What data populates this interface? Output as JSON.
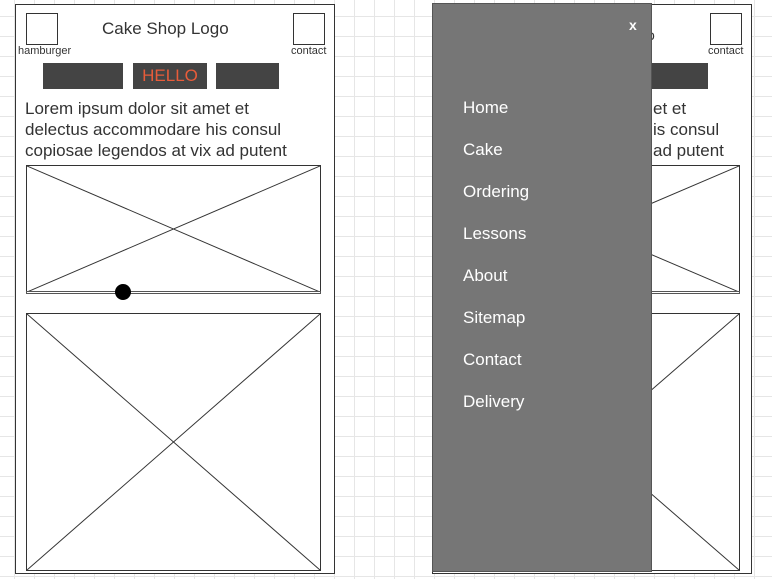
{
  "left_screen": {
    "logo": "Cake Shop Logo",
    "hamburger_label": "hamburger",
    "contact_label": "contact",
    "hello_label": "HELLO",
    "lorem_lines": [
      "Lorem ipsum dolor sit amet et",
      "delectus accommodare his consul",
      "copiosae legendos at vix ad putent"
    ]
  },
  "right_screen": {
    "logo_fragment": "o",
    "contact_label": "contact",
    "lorem_fragments": [
      "et et",
      "is consul",
      "ad putent"
    ],
    "close_label": "x",
    "menu_items": [
      "Home",
      "Cake",
      "Ordering",
      "Lessons",
      "About",
      "Sitemap",
      "Contact",
      "Delivery"
    ]
  },
  "colors": {
    "hello_text": "#e85c3a",
    "nav_bar": "#444444",
    "drawer": "#767676"
  }
}
